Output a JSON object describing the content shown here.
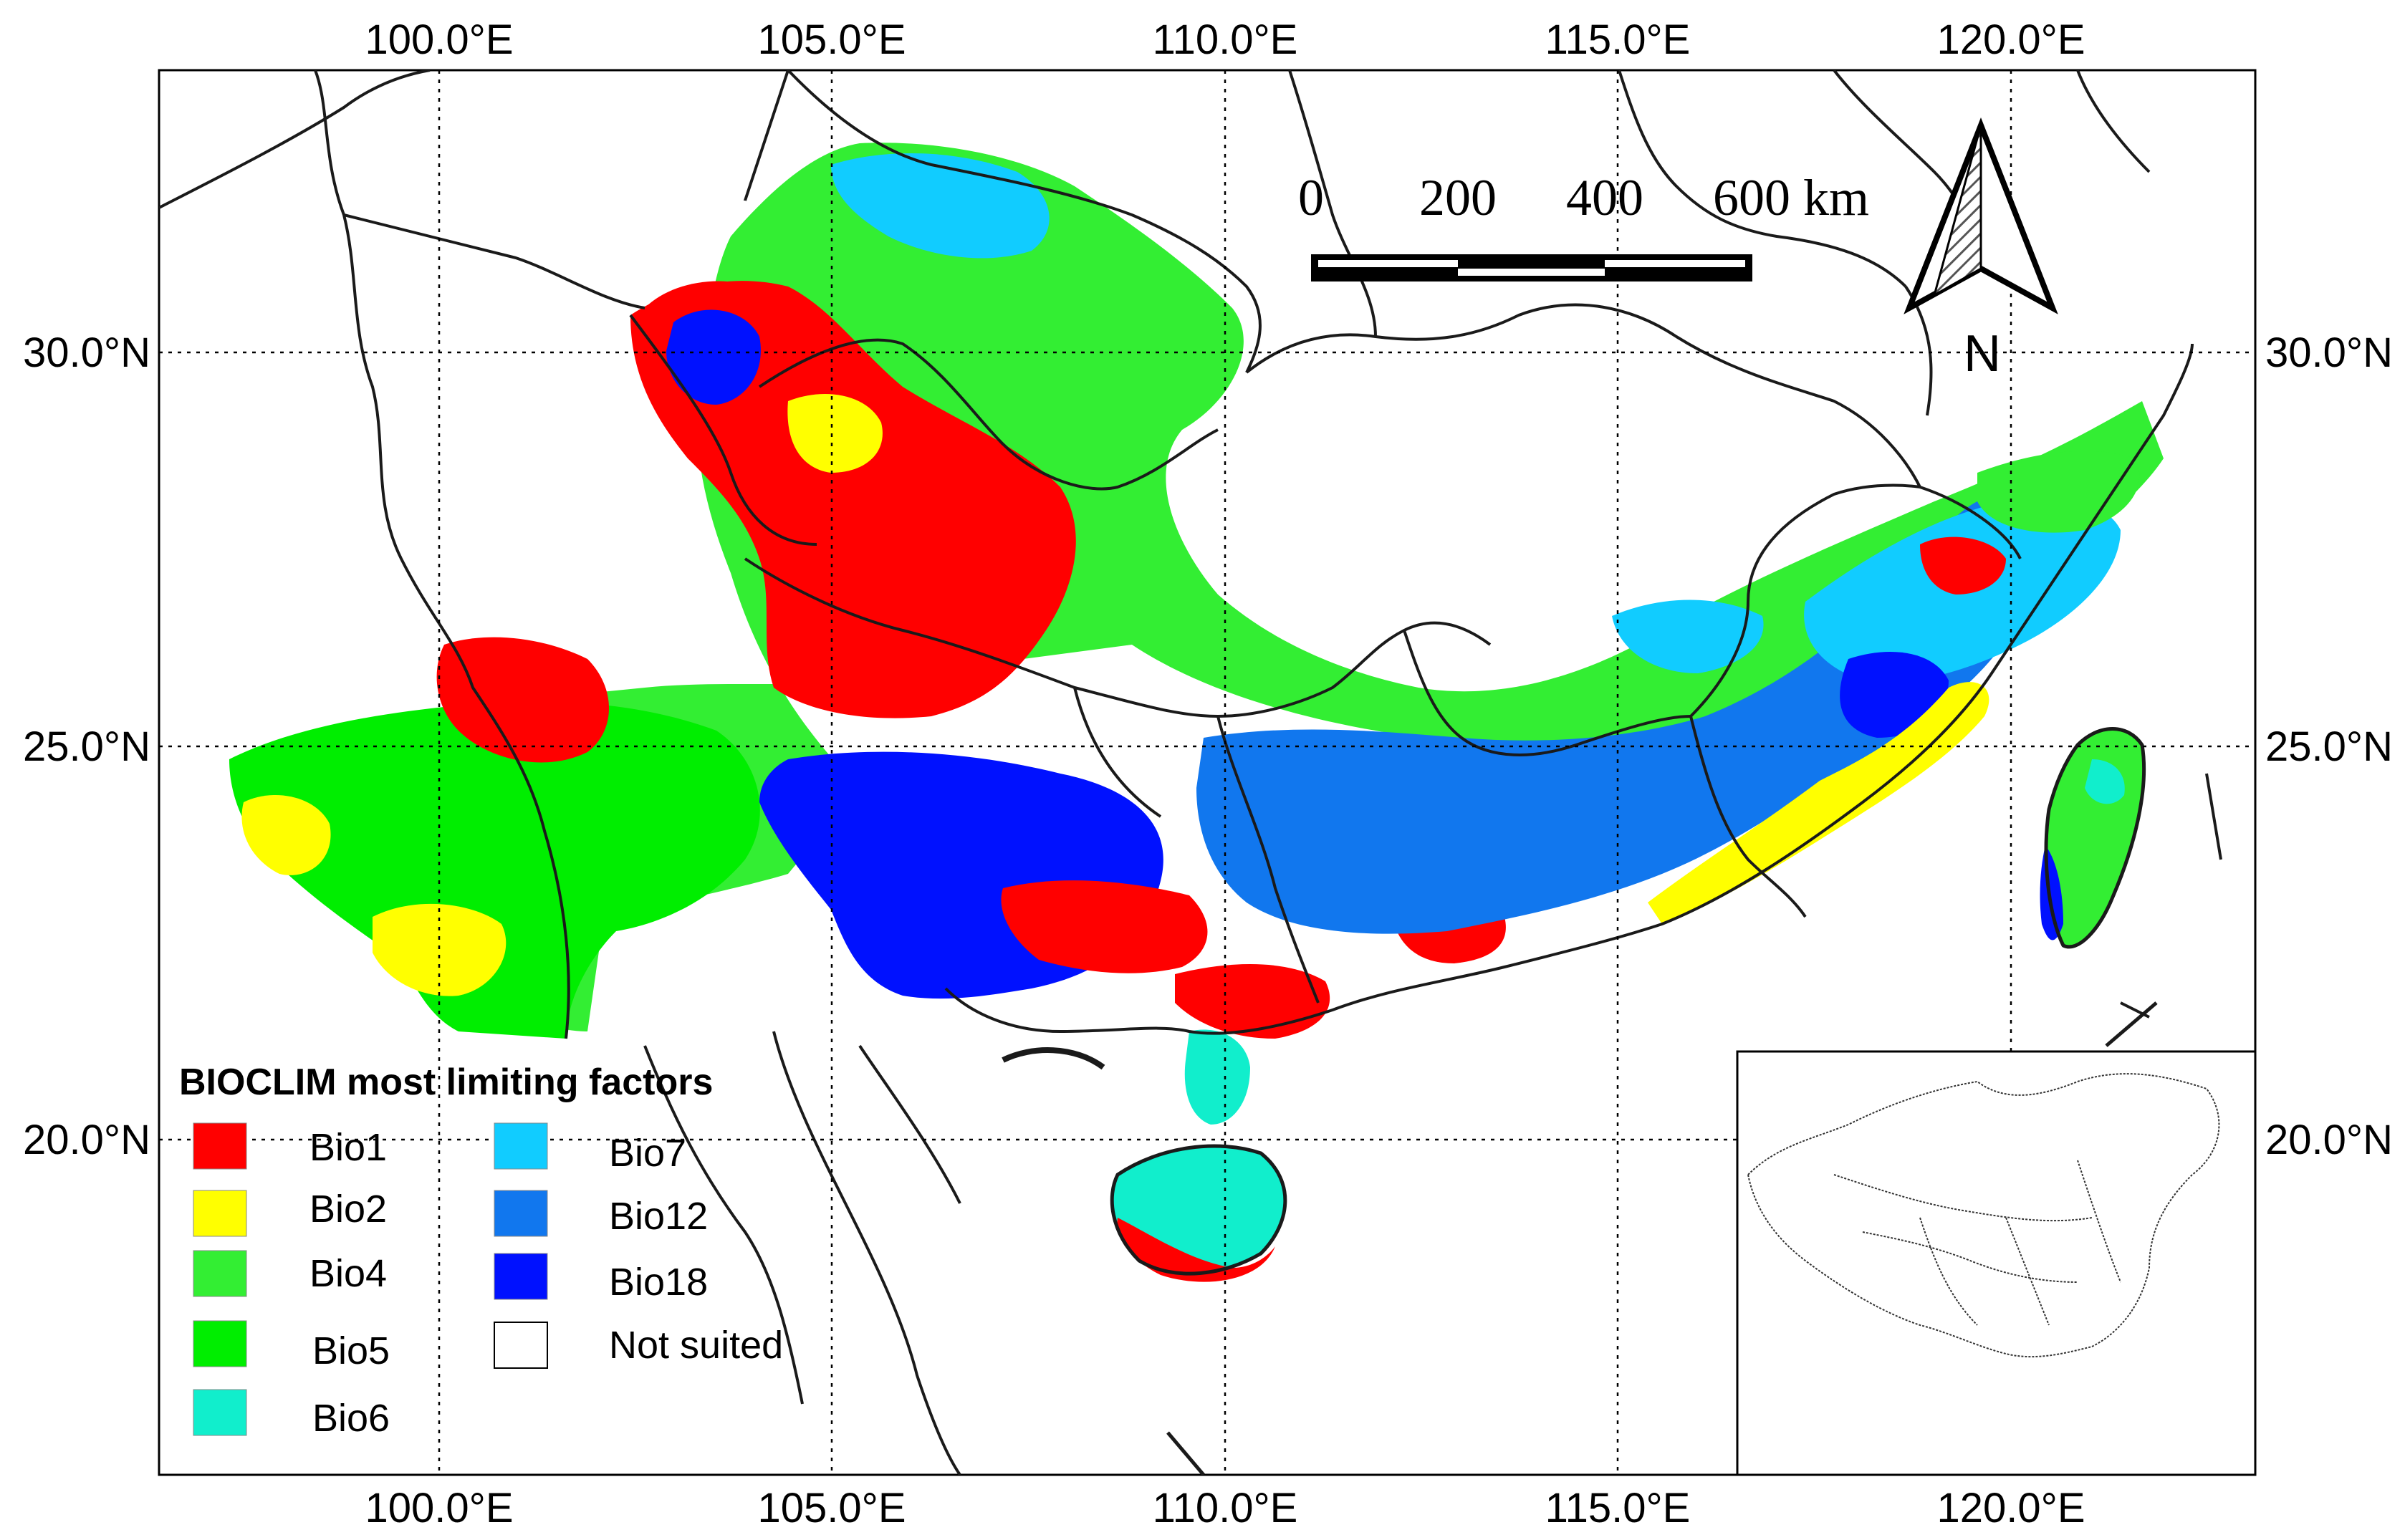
{
  "map": {
    "lon_ticks": [
      "100.0°E",
      "105.0°E",
      "110.0°E",
      "115.0°E",
      "120.0°E"
    ],
    "lat_ticks": [
      "30.0°N",
      "25.0°N",
      "20.0°N"
    ],
    "extent": {
      "lon_min": 96.5,
      "lon_max": 123.2,
      "lat_min": 15.5,
      "lat_max": 33.8
    }
  },
  "scale_bar": {
    "labels": [
      "0",
      "200",
      "400",
      "600 km"
    ]
  },
  "north_arrow": {
    "label": "N"
  },
  "legend": {
    "title": "BIOCLIM most limiting factors",
    "items": [
      {
        "label": "Bio1",
        "color": "#ff0000"
      },
      {
        "label": "Bio2",
        "color": "#ffff00"
      },
      {
        "label": "Bio4",
        "color": "#33ee33"
      },
      {
        "label": "Bio5",
        "color": "#00ee00"
      },
      {
        "label": "Bio6",
        "color": "#11eecc"
      },
      {
        "label": "Bio7",
        "color": "#11ccff"
      },
      {
        "label": "Bio12",
        "color": "#1177ee"
      },
      {
        "label": "Bio18",
        "color": "#0011ff"
      },
      {
        "label": "Not suited",
        "color": "#ffffff"
      }
    ]
  }
}
